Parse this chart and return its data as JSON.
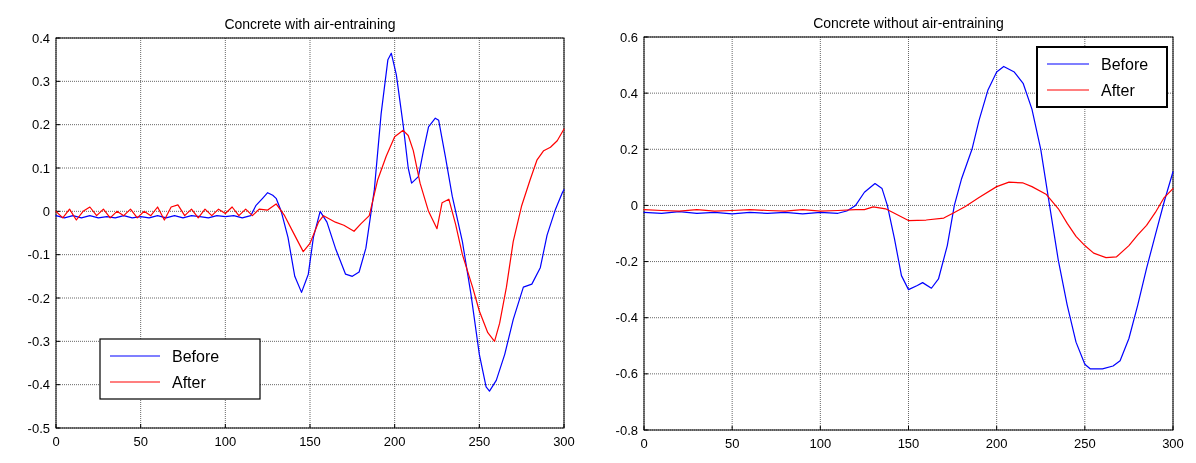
{
  "chart_data": [
    {
      "type": "line",
      "title": "Concrete with air-entraining",
      "xlim": [
        0,
        300
      ],
      "xticks": [
        0,
        50,
        100,
        150,
        200,
        250,
        300
      ],
      "ylim": [
        -0.5,
        0.4
      ],
      "yticks": [
        -0.5,
        -0.4,
        -0.3,
        -0.2,
        -0.1,
        0,
        0.1,
        0.2,
        0.3,
        0.4
      ],
      "grid": true,
      "legend": "bottom left",
      "line_style": "solid",
      "marker": "none",
      "series": [
        {
          "name": "Before",
          "color": "#0000ff",
          "x": [
            0,
            5,
            10,
            15,
            20,
            25,
            30,
            35,
            40,
            45,
            50,
            55,
            60,
            65,
            70,
            75,
            80,
            85,
            90,
            95,
            100,
            105,
            110,
            115,
            118,
            122,
            125,
            128,
            130,
            133,
            137,
            141,
            145,
            149,
            152,
            156,
            160,
            165,
            171,
            175,
            179,
            183,
            188,
            192,
            196,
            198,
            201,
            205,
            208,
            210,
            214,
            217,
            220,
            224,
            226,
            230,
            234,
            240,
            245,
            250,
            254,
            256,
            260,
            265,
            270,
            276,
            281,
            286,
            290,
            295,
            299,
            300
          ],
          "values": [
            -0.01,
            -0.015,
            -0.01,
            -0.015,
            -0.01,
            -0.015,
            -0.012,
            -0.015,
            -0.01,
            -0.015,
            -0.012,
            -0.015,
            -0.01,
            -0.015,
            -0.01,
            -0.015,
            -0.01,
            -0.012,
            -0.015,
            -0.01,
            -0.012,
            -0.01,
            -0.015,
            -0.01,
            0.013,
            0.03,
            0.043,
            0.037,
            0.03,
            0,
            -0.06,
            -0.15,
            -0.187,
            -0.145,
            -0.06,
            0,
            -0.025,
            -0.085,
            -0.145,
            -0.15,
            -0.14,
            -0.085,
            0.05,
            0.225,
            0.35,
            0.365,
            0.315,
            0.2,
            0.1,
            0.065,
            0.08,
            0.14,
            0.195,
            0.215,
            0.21,
            0.125,
            0.035,
            -0.07,
            -0.19,
            -0.33,
            -0.405,
            -0.415,
            -0.39,
            -0.33,
            -0.25,
            -0.175,
            -0.168,
            -0.13,
            -0.055,
            0.005,
            0.043,
            0.05
          ]
        },
        {
          "name": "After",
          "color": "#ff0000",
          "x": [
            0,
            4,
            8,
            12,
            16,
            20,
            24,
            28,
            32,
            36,
            40,
            44,
            48,
            52,
            56,
            60,
            64,
            68,
            72,
            76,
            80,
            84,
            88,
            92,
            96,
            100,
            104,
            108,
            112,
            116,
            120,
            125,
            130,
            135,
            140,
            146,
            150,
            155,
            158,
            165,
            170,
            176,
            180,
            185,
            190,
            195,
            200,
            205,
            208,
            211,
            215,
            220,
            225,
            228,
            232,
            236,
            240,
            246,
            250,
            255,
            259,
            262,
            266,
            270,
            275,
            280,
            284,
            288,
            292,
            296,
            300
          ],
          "values": [
            0,
            -0.015,
            0.005,
            -0.02,
            0,
            0.01,
            -0.01,
            0.005,
            -0.015,
            0,
            -0.01,
            0.005,
            -0.015,
            0,
            -0.01,
            0.01,
            -0.02,
            0.01,
            0.015,
            -0.01,
            0.005,
            -0.015,
            0.005,
            -0.01,
            0.005,
            -0.005,
            0.01,
            -0.01,
            0.005,
            -0.01,
            0.005,
            0.003,
            0.017,
            -0.01,
            -0.048,
            -0.093,
            -0.074,
            -0.025,
            -0.01,
            -0.025,
            -0.032,
            -0.046,
            -0.029,
            -0.01,
            0.073,
            0.127,
            0.172,
            0.187,
            0.175,
            0.14,
            0.065,
            0,
            -0.04,
            0.02,
            0.028,
            -0.03,
            -0.1,
            -0.175,
            -0.23,
            -0.28,
            -0.3,
            -0.258,
            -0.175,
            -0.07,
            0.013,
            0.073,
            0.118,
            0.14,
            0.148,
            0.163,
            0.19
          ]
        }
      ]
    },
    {
      "type": "line",
      "title": "Concrete without air-entraining",
      "xlim": [
        0,
        300
      ],
      "xticks": [
        0,
        50,
        100,
        150,
        200,
        250,
        300
      ],
      "ylim": [
        -0.8,
        0.6
      ],
      "yticks": [
        -0.8,
        -0.6,
        -0.4,
        -0.2,
        0,
        0.2,
        0.4,
        0.6
      ],
      "grid": true,
      "legend": "top right",
      "line_style": "solid",
      "marker": "none",
      "series": [
        {
          "name": "Before",
          "color": "#0000ff",
          "x": [
            0,
            10,
            20,
            30,
            40,
            50,
            60,
            70,
            80,
            90,
            100,
            110,
            115,
            120,
            125,
            131,
            135,
            138,
            142,
            146,
            150,
            155,
            158,
            163,
            167,
            172,
            176,
            180,
            186,
            190,
            195,
            200,
            204,
            210,
            215,
            220,
            225,
            230,
            235,
            240,
            245,
            250,
            253,
            260,
            266,
            270,
            275,
            280,
            285,
            290,
            295,
            300
          ],
          "values": [
            -0.025,
            -0.028,
            -0.022,
            -0.028,
            -0.025,
            -0.03,
            -0.025,
            -0.028,
            -0.025,
            -0.03,
            -0.025,
            -0.028,
            -0.02,
            0,
            0.047,
            0.078,
            0.06,
            0,
            -0.117,
            -0.25,
            -0.3,
            -0.285,
            -0.275,
            -0.295,
            -0.262,
            -0.143,
            0,
            0.093,
            0.2,
            0.303,
            0.41,
            0.475,
            0.495,
            0.475,
            0.435,
            0.343,
            0.2,
            0,
            -0.197,
            -0.355,
            -0.487,
            -0.566,
            -0.582,
            -0.582,
            -0.572,
            -0.553,
            -0.474,
            -0.355,
            -0.224,
            -0.105,
            0.013,
            0.12
          ]
        },
        {
          "name": "After",
          "color": "#ff0000",
          "x": [
            0,
            10,
            20,
            30,
            40,
            50,
            60,
            70,
            80,
            90,
            100,
            110,
            120,
            125,
            130,
            137,
            142,
            150,
            160,
            170,
            176,
            182,
            190,
            200,
            207,
            215,
            220,
            228,
            235,
            240,
            245,
            250,
            255,
            262,
            268,
            275,
            280,
            285,
            290,
            295,
            300
          ],
          "values": [
            -0.015,
            -0.018,
            -0.02,
            -0.015,
            -0.02,
            -0.018,
            -0.015,
            -0.018,
            -0.02,
            -0.015,
            -0.02,
            -0.018,
            -0.015,
            -0.015,
            -0.005,
            -0.012,
            -0.028,
            -0.054,
            -0.052,
            -0.045,
            -0.025,
            -0.005,
            0.028,
            0.067,
            0.083,
            0.08,
            0.067,
            0.04,
            -0.012,
            -0.064,
            -0.11,
            -0.143,
            -0.17,
            -0.186,
            -0.183,
            -0.143,
            -0.105,
            -0.071,
            -0.025,
            0.028,
            0.06
          ]
        }
      ]
    }
  ]
}
